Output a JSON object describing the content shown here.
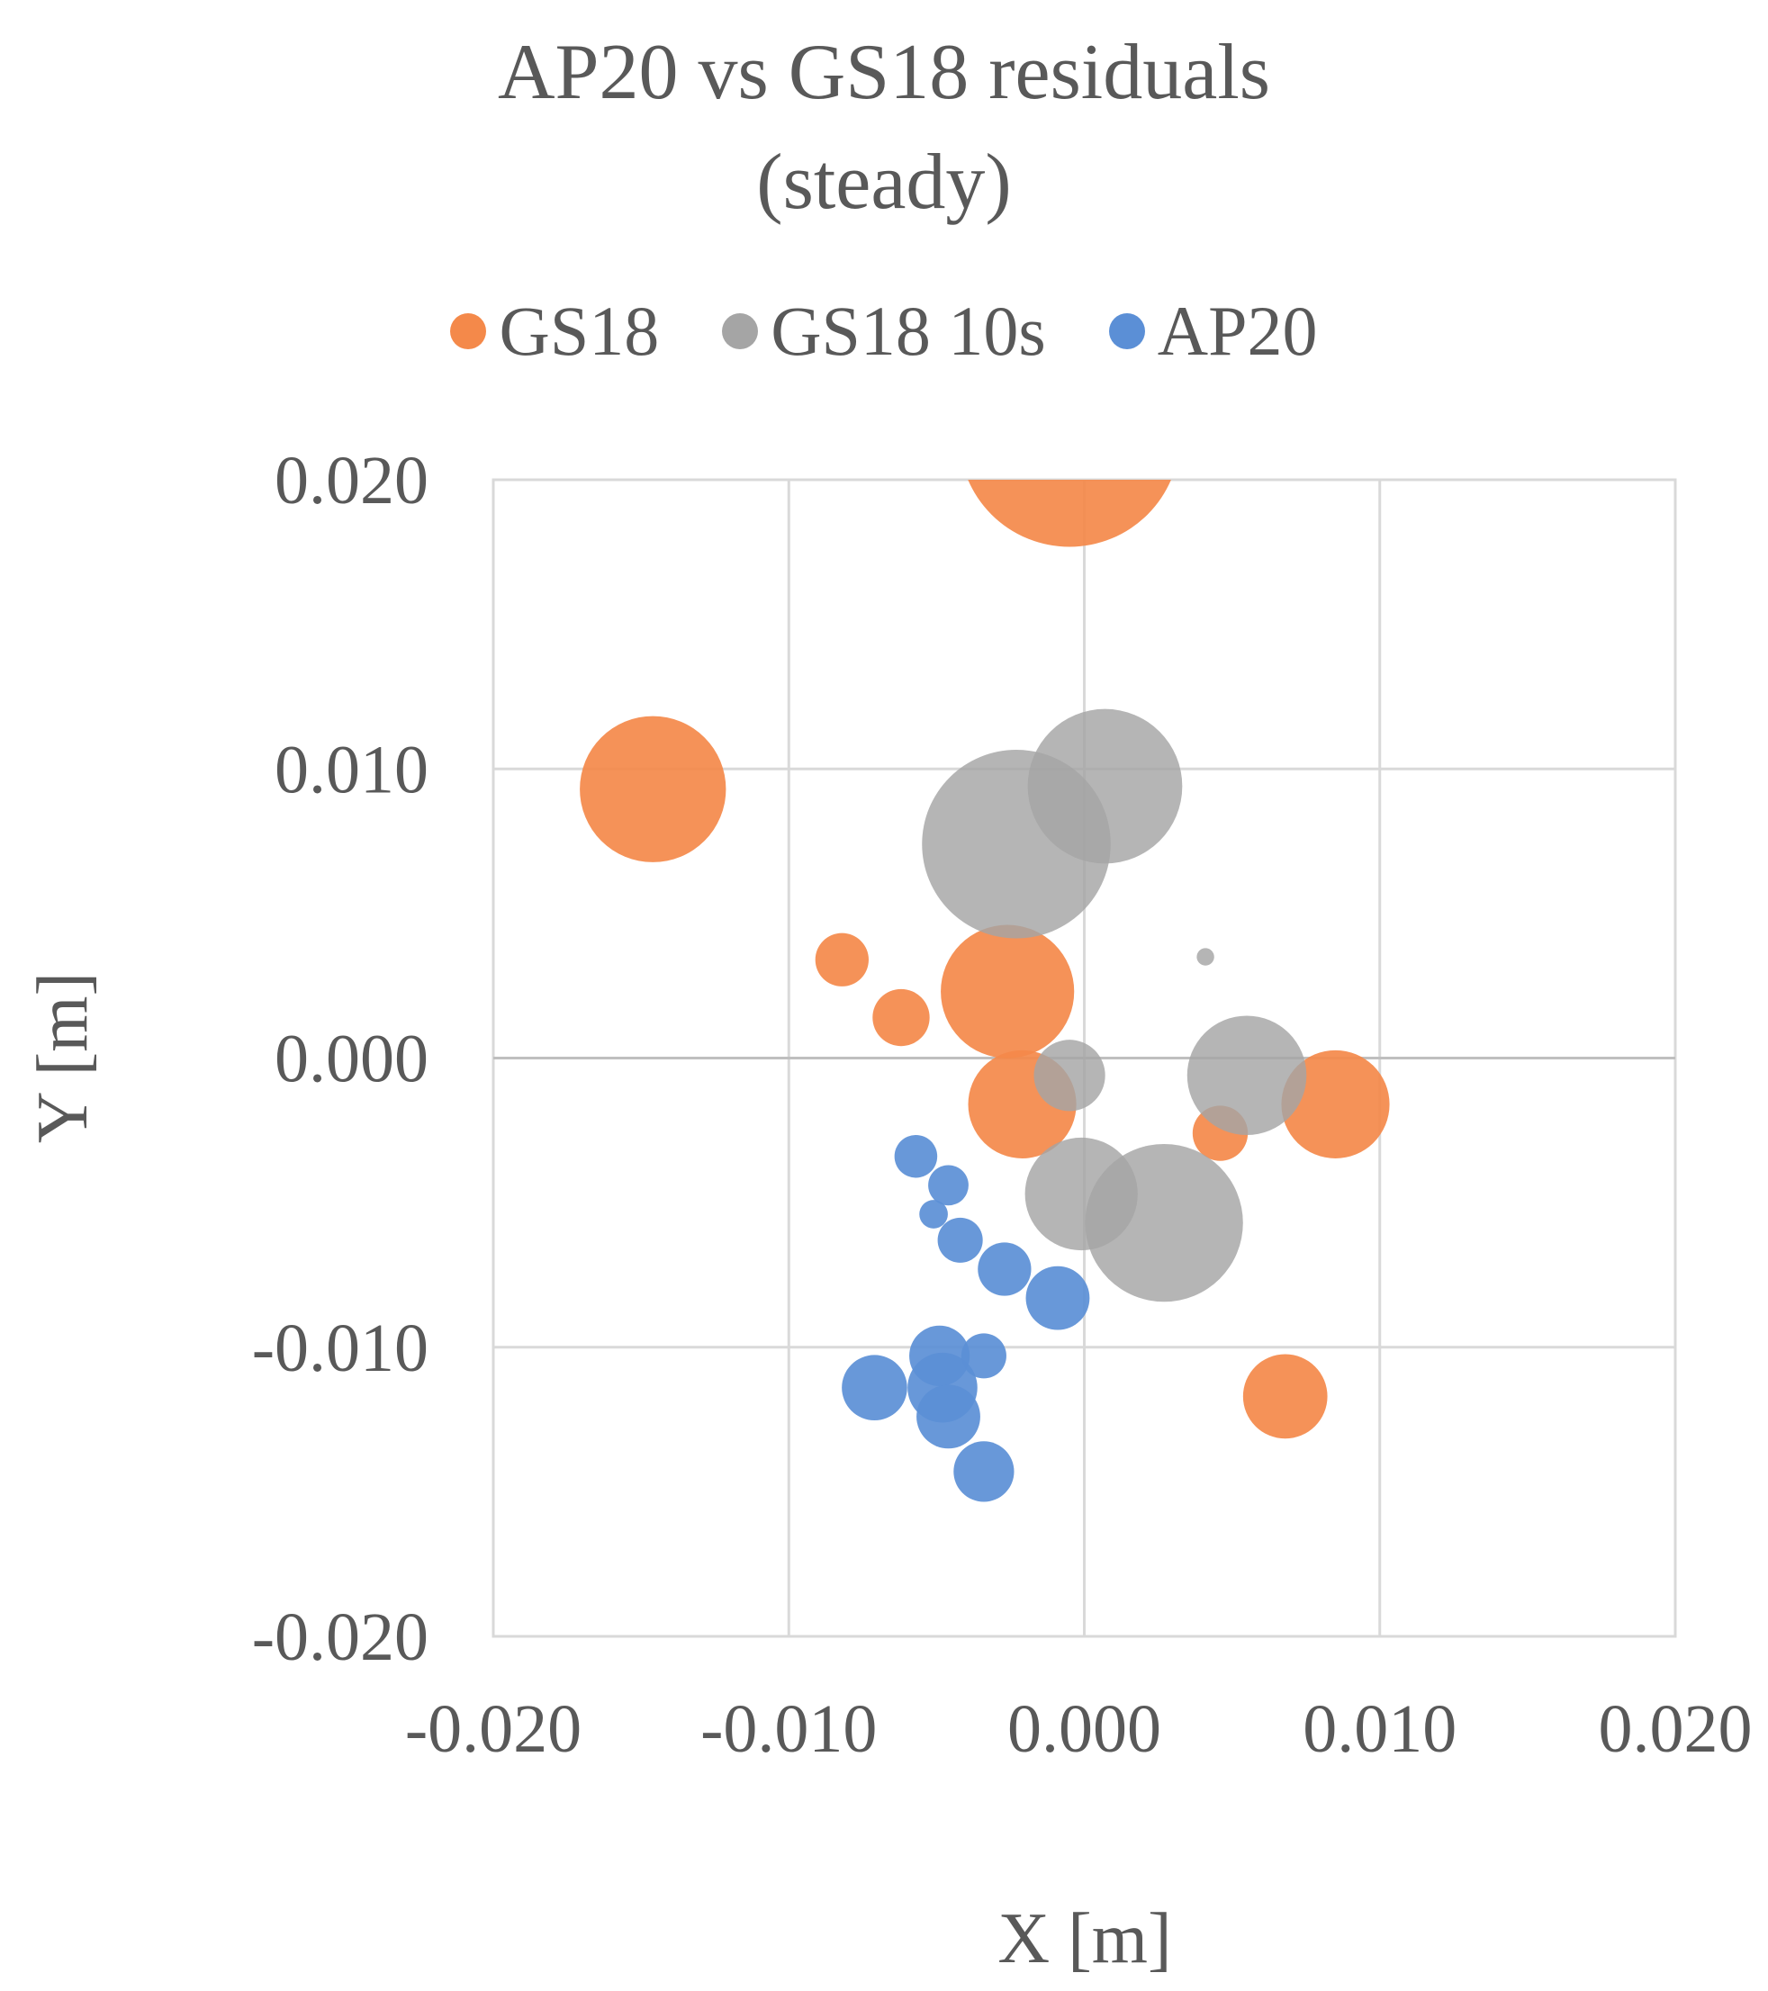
{
  "chart_data": {
    "type": "scatter",
    "bubble": true,
    "title_lines": [
      "AP20 vs GS18 residuals",
      "(steady)"
    ],
    "xlabel": "X [m]",
    "ylabel": "Y [m]",
    "xlim": [
      -0.02,
      0.02
    ],
    "ylim": [
      -0.02,
      0.02
    ],
    "grid": true,
    "legend_position": "top",
    "x_ticks": [
      "-0.020",
      "-0.010",
      "0.000",
      "0.010",
      "0.020"
    ],
    "y_ticks": [
      "0.020",
      "0.010",
      "0.000",
      "-0.010",
      "-0.020"
    ],
    "series": [
      {
        "name": "GS18",
        "color": "#F4894A",
        "points": [
          {
            "x": -0.0005,
            "y": 0.0215,
            "size": 4.8
          },
          {
            "x": -0.0146,
            "y": 0.0093,
            "size": 2.1
          },
          {
            "x": -0.0026,
            "y": 0.0023,
            "size": 1.75
          },
          {
            "x": -0.0082,
            "y": 0.0034,
            "size": 0.28
          },
          {
            "x": -0.0062,
            "y": 0.0014,
            "size": 0.32
          },
          {
            "x": -0.0021,
            "y": -0.0016,
            "size": 1.15
          },
          {
            "x": 0.0085,
            "y": -0.0016,
            "size": 1.15
          },
          {
            "x": 0.0046,
            "y": -0.0026,
            "size": 0.3
          },
          {
            "x": 0.0068,
            "y": -0.0117,
            "size": 0.7
          }
        ]
      },
      {
        "name": "GS18 10s",
        "color": "#A5A5A5",
        "points": [
          {
            "x": 0.0007,
            "y": 0.0094,
            "size": 2.35
          },
          {
            "x": -0.0023,
            "y": 0.0074,
            "size": 3.5
          },
          {
            "x": 0.0055,
            "y": -0.0006,
            "size": 1.4
          },
          {
            "x": -0.0005,
            "y": -0.0006,
            "size": 0.5
          },
          {
            "x": -0.0001,
            "y": -0.0047,
            "size": 1.25
          },
          {
            "x": 0.0027,
            "y": -0.0057,
            "size": 2.45
          },
          {
            "x": 0.0041,
            "y": 0.0035,
            "size": 0.03
          }
        ]
      },
      {
        "name": "AP20",
        "color": "#5B8FD6",
        "points": [
          {
            "x": -0.0057,
            "y": -0.0034,
            "size": 0.18
          },
          {
            "x": -0.0046,
            "y": -0.0044,
            "size": 0.16
          },
          {
            "x": -0.0051,
            "y": -0.0054,
            "size": 0.08
          },
          {
            "x": -0.0042,
            "y": -0.0063,
            "size": 0.2
          },
          {
            "x": -0.0027,
            "y": -0.0073,
            "size": 0.28
          },
          {
            "x": -0.0009,
            "y": -0.0083,
            "size": 0.4
          },
          {
            "x": -0.0049,
            "y": -0.0103,
            "size": 0.36
          },
          {
            "x": -0.0034,
            "y": -0.0103,
            "size": 0.2
          },
          {
            "x": -0.0071,
            "y": -0.0114,
            "size": 0.42
          },
          {
            "x": -0.0048,
            "y": -0.0114,
            "size": 0.48
          },
          {
            "x": -0.0046,
            "y": -0.0124,
            "size": 0.4
          },
          {
            "x": -0.0034,
            "y": -0.0143,
            "size": 0.36
          }
        ]
      }
    ]
  }
}
